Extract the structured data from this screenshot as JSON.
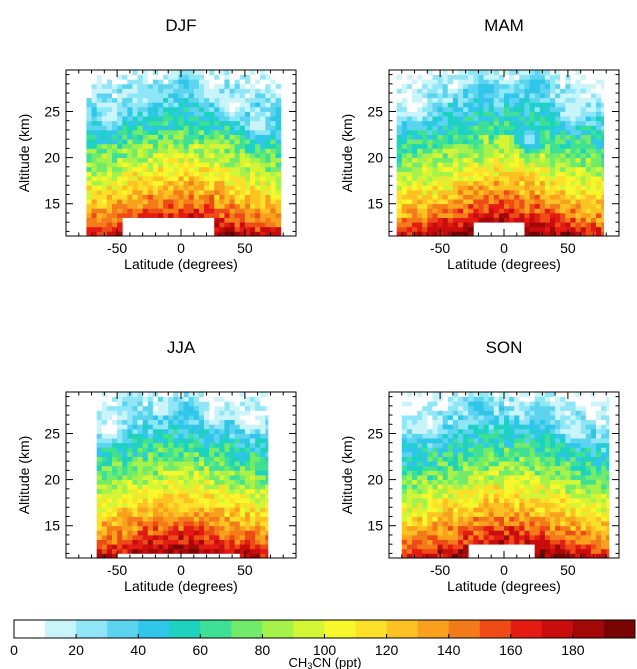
{
  "colors": {
    "levels": [
      "#ffffff",
      "#c8f4fa",
      "#8ee6f7",
      "#5cd4f0",
      "#2fc6ea",
      "#1dd3c0",
      "#3ee095",
      "#72eb6b",
      "#a6f24a",
      "#d4f536",
      "#f7f72c",
      "#fde02a",
      "#fcc223",
      "#f9a11e",
      "#f47b1a",
      "#ee4b16",
      "#e31b12",
      "#c80d0c",
      "#a30808",
      "#7a0404"
    ]
  },
  "chart_data": [
    {
      "type": "heatmap",
      "title": "DJF",
      "xlabel": "Latitude (degrees)",
      "ylabel": "Altitude (km)",
      "xlim": [
        -90,
        90
      ],
      "ylim": [
        11.5,
        29.5
      ],
      "xticks": [
        -50,
        0,
        50
      ],
      "yticks": [
        15,
        20,
        25
      ],
      "lat_range": [
        -74,
        78
      ],
      "bottom_gap": {
        "lat": [
          -45,
          25
        ],
        "below_km": 13.5
      },
      "value_range_ppt": [
        10,
        185
      ],
      "patches": [
        {
          "lat": 22,
          "alt": 27.5,
          "value": 8
        },
        {
          "lat": 40,
          "alt": 25.5,
          "value": 6
        },
        {
          "lat": 60,
          "alt": 23.5,
          "value": 10
        },
        {
          "lat": -30,
          "alt": 26.5,
          "value": 20
        },
        {
          "lat": 5,
          "alt": 28.0,
          "value": 42
        },
        {
          "lat": -55,
          "alt": 24.5,
          "value": 12
        }
      ]
    },
    {
      "type": "heatmap",
      "title": "MAM",
      "xlabel": "Latitude (degrees)",
      "ylabel": "Altitude (km)",
      "xlim": [
        -90,
        90
      ],
      "ylim": [
        11.5,
        29.5
      ],
      "xticks": [
        -50,
        0,
        50
      ],
      "yticks": [
        15,
        20,
        25
      ],
      "lat_range": [
        -84,
        78
      ],
      "bottom_gap": {
        "lat": [
          -25,
          15
        ],
        "below_km": 13.0
      },
      "value_range_ppt": [
        10,
        185
      ],
      "patches": [
        {
          "lat": -70,
          "alt": 25.5,
          "value": 6
        },
        {
          "lat": 55,
          "alt": 25.0,
          "value": 10
        },
        {
          "lat": -15,
          "alt": 27.5,
          "value": 45
        },
        {
          "lat": 25,
          "alt": 28.0,
          "value": 48
        },
        {
          "lat": 20,
          "alt": 22.0,
          "value": 22
        }
      ]
    },
    {
      "type": "heatmap",
      "title": "JJA",
      "xlabel": "Latitude (degrees)",
      "ylabel": "Altitude (km)",
      "xlim": [
        -90,
        90
      ],
      "ylim": [
        11.5,
        29.5
      ],
      "xticks": [
        -50,
        0,
        50
      ],
      "yticks": [
        15,
        20,
        25
      ],
      "lat_range": [
        -66,
        68
      ],
      "bottom_gap": {
        "lat": [
          -50,
          45
        ],
        "below_km": 12.0
      },
      "value_range_ppt": [
        10,
        185
      ],
      "patches": [
        {
          "lat": -55,
          "alt": 25.5,
          "value": 5
        },
        {
          "lat": 55,
          "alt": 26.5,
          "value": 6
        },
        {
          "lat": 25,
          "alt": 27.0,
          "value": 8
        },
        {
          "lat": -40,
          "alt": 28.5,
          "value": 30
        },
        {
          "lat": 5,
          "alt": 27.5,
          "value": 45
        },
        {
          "lat": 0,
          "alt": 17.0,
          "value": 118
        }
      ]
    },
    {
      "type": "heatmap",
      "title": "SON",
      "xlabel": "Latitude (degrees)",
      "ylabel": "Altitude (km)",
      "xlim": [
        -90,
        90
      ],
      "ylim": [
        11.5,
        29.5
      ],
      "xticks": [
        -50,
        0,
        50
      ],
      "yticks": [
        15,
        20,
        25
      ],
      "lat_range": [
        -80,
        82
      ],
      "bottom_gap": {
        "lat": [
          -30,
          25
        ],
        "below_km": 13.0
      },
      "value_range_ppt": [
        10,
        185
      ],
      "patches": [
        {
          "lat": -60,
          "alt": 26.0,
          "value": 8
        },
        {
          "lat": 55,
          "alt": 25.5,
          "value": 10
        },
        {
          "lat": 30,
          "alt": 27.5,
          "value": 35
        },
        {
          "lat": -20,
          "alt": 28.0,
          "value": 45
        }
      ]
    }
  ],
  "colorbar": {
    "label_main": "CH",
    "label_sub1": "3",
    "label_mid": "CN",
    "label_unit": " (ppt)",
    "range": [
      0,
      200
    ],
    "ticks": [
      0,
      20,
      40,
      60,
      80,
      100,
      120,
      140,
      160,
      180
    ],
    "tick_labels": [
      "0",
      "20",
      "40",
      "60",
      "80",
      "100",
      "120",
      "140",
      "160",
      "180"
    ]
  }
}
